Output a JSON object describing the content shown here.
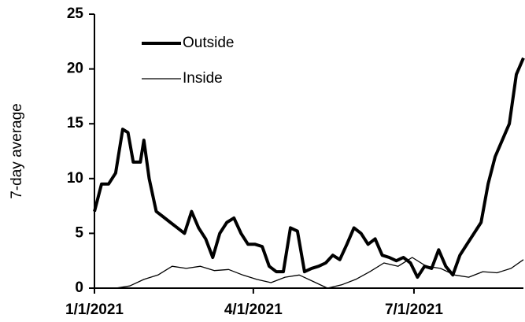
{
  "chart_data": {
    "type": "line",
    "y_label": "7-day average",
    "xlim": [
      "2021-01-01",
      "2021-09-01"
    ],
    "xticks": [
      {
        "value": "2021-01-01",
        "label": "1/1/2021"
      },
      {
        "value": "2021-04-01",
        "label": "4/1/2021"
      },
      {
        "value": "2021-07-01",
        "label": "7/1/2021"
      }
    ],
    "ylim": [
      0,
      25
    ],
    "yticks": [
      0,
      5,
      10,
      15,
      20,
      25
    ],
    "legend": "upper left",
    "series": [
      {
        "name": "Outside",
        "color": "#000000",
        "x": [
          "2021-01-01",
          "2021-01-05",
          "2021-01-09",
          "2021-01-13",
          "2021-01-17",
          "2021-01-20",
          "2021-01-23",
          "2021-01-27",
          "2021-01-29",
          "2021-02-01",
          "2021-02-05",
          "2021-02-09",
          "2021-02-13",
          "2021-02-17",
          "2021-02-21",
          "2021-02-25",
          "2021-03-01",
          "2021-03-05",
          "2021-03-09",
          "2021-03-13",
          "2021-03-17",
          "2021-03-21",
          "2021-03-25",
          "2021-03-29",
          "2021-04-02",
          "2021-04-06",
          "2021-04-10",
          "2021-04-14",
          "2021-04-18",
          "2021-04-22",
          "2021-04-26",
          "2021-04-30",
          "2021-05-04",
          "2021-05-08",
          "2021-05-12",
          "2021-05-16",
          "2021-05-20",
          "2021-05-24",
          "2021-05-28",
          "2021-06-01",
          "2021-06-05",
          "2021-06-09",
          "2021-06-13",
          "2021-06-17",
          "2021-06-21",
          "2021-06-25",
          "2021-06-29",
          "2021-07-03",
          "2021-07-07",
          "2021-07-11",
          "2021-07-15",
          "2021-07-19",
          "2021-07-23",
          "2021-07-27",
          "2021-07-31",
          "2021-08-04",
          "2021-08-08",
          "2021-08-12",
          "2021-08-16",
          "2021-08-20",
          "2021-08-24",
          "2021-08-28",
          "2021-09-01"
        ],
        "values": [
          7,
          9.5,
          9.5,
          10.5,
          14.5,
          14.2,
          11.5,
          11.5,
          13.5,
          10,
          7,
          6.5,
          6,
          5.5,
          5,
          7,
          5.5,
          4.5,
          2.8,
          5,
          6,
          6.4,
          5,
          4,
          4,
          3.8,
          2,
          1.5,
          1.5,
          5.5,
          5.2,
          1.5,
          1.8,
          2,
          2.3,
          3,
          2.6,
          4,
          5.5,
          5,
          4,
          4.5,
          3,
          2.8,
          2.5,
          2.8,
          2.3,
          1,
          2,
          1.8,
          3.5,
          2,
          1.2,
          3,
          4,
          5,
          6,
          9.5,
          12,
          13.5,
          15,
          19.5,
          21
        ]
      },
      {
        "name": "Inside",
        "color": "#000000",
        "x": [
          "2021-01-13",
          "2021-01-21",
          "2021-01-29",
          "2021-02-06",
          "2021-02-14",
          "2021-02-22",
          "2021-03-02",
          "2021-03-10",
          "2021-03-18",
          "2021-03-26",
          "2021-04-03",
          "2021-04-11",
          "2021-04-19",
          "2021-04-27",
          "2021-05-05",
          "2021-05-13",
          "2021-05-21",
          "2021-05-29",
          "2021-06-06",
          "2021-06-14",
          "2021-06-22",
          "2021-06-30",
          "2021-07-08",
          "2021-07-16",
          "2021-07-24",
          "2021-08-01",
          "2021-08-09",
          "2021-08-17",
          "2021-08-25",
          "2021-09-01"
        ],
        "values": [
          0,
          0.2,
          0.8,
          1.2,
          2,
          1.8,
          2,
          1.6,
          1.7,
          1.2,
          0.8,
          0.5,
          1,
          1.2,
          0.6,
          0,
          0.3,
          0.8,
          1.5,
          2.3,
          2,
          2.8,
          2,
          1.8,
          1.2,
          1,
          1.5,
          1.4,
          1.8,
          2.6
        ]
      }
    ]
  }
}
